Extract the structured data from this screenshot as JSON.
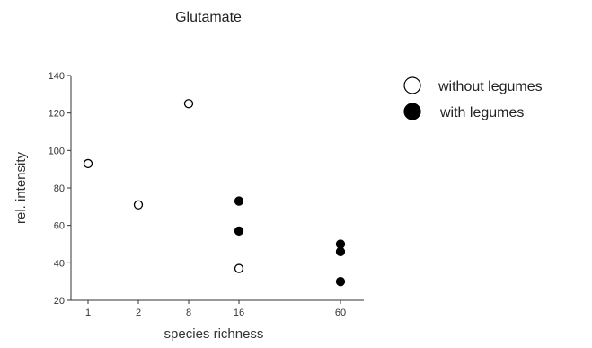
{
  "chart_data": {
    "type": "scatter",
    "title": "Glutamate",
    "xlabel": "species richness",
    "ylabel": "rel. intensity",
    "x_scale": "categorical",
    "categories": [
      "1",
      "2",
      "8",
      "16",
      "60"
    ],
    "ylim": [
      20,
      140
    ],
    "yticks": [
      20,
      40,
      60,
      80,
      100,
      120,
      140
    ],
    "grid": false,
    "legend_position": "right",
    "series": [
      {
        "name": "without legumes",
        "marker": "open-circle",
        "color": "#000000",
        "points": [
          {
            "x": "1",
            "y": 93
          },
          {
            "x": "2",
            "y": 71
          },
          {
            "x": "8",
            "y": 125
          },
          {
            "x": "16",
            "y": 37
          }
        ]
      },
      {
        "name": "with legumes",
        "marker": "filled-circle",
        "color": "#000000",
        "points": [
          {
            "x": "16",
            "y": 73
          },
          {
            "x": "16",
            "y": 57
          },
          {
            "x": "60",
            "y": 50
          },
          {
            "x": "60",
            "y": 46
          },
          {
            "x": "60",
            "y": 30
          }
        ]
      }
    ]
  }
}
